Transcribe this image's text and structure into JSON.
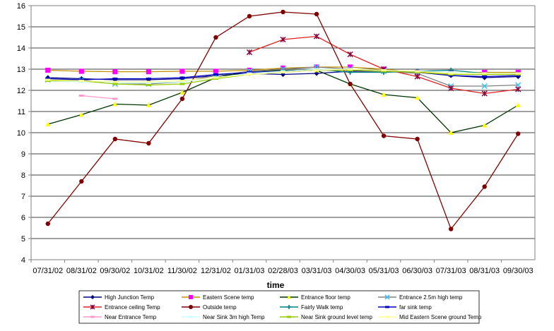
{
  "chart_data": {
    "type": "line",
    "title": "",
    "xlabel": "time",
    "ylabel": "",
    "ylim": [
      4,
      16
    ],
    "yticks": [
      4,
      5,
      6,
      7,
      8,
      9,
      10,
      11,
      12,
      13,
      14,
      15,
      16
    ],
    "grid": true,
    "legend_placement": "bottom",
    "categories": [
      "07/31/02",
      "08/31/02",
      "09/30/02",
      "10/31/02",
      "11/30/02",
      "12/31/02",
      "01/31/03",
      "02/28/03",
      "03/31/03",
      "04/30/03",
      "05/31/03",
      "06/30/03",
      "07/31/03",
      "08/31/03",
      "09/30/03"
    ],
    "series": [
      {
        "name": "High Junction Temp",
        "color": "#000080",
        "marker": "diamond",
        "values": [
          12.6,
          12.55,
          12.5,
          12.5,
          12.55,
          12.7,
          12.8,
          12.75,
          12.8,
          12.9,
          12.9,
          12.9,
          12.7,
          12.6,
          12.65
        ]
      },
      {
        "name": "Eastern Scene temp",
        "color": "#FF00FF",
        "marker": "square",
        "line_color": "#C09000",
        "values": [
          12.95,
          12.9,
          12.88,
          12.88,
          12.9,
          12.9,
          12.95,
          13.05,
          13.1,
          13.1,
          13.0,
          12.85,
          12.8,
          12.85,
          12.85
        ]
      },
      {
        "name": "Entrance floor temp",
        "color": "#FFFF00",
        "marker": "triangle",
        "line_color": "#003300",
        "values": [
          10.4,
          10.85,
          11.35,
          11.3,
          11.9,
          12.6,
          12.9,
          12.95,
          12.95,
          12.3,
          11.8,
          11.65,
          10.0,
          10.35,
          11.3
        ]
      },
      {
        "name": "Entrance 2.5m high temp",
        "color": "#40C0FF",
        "marker": "x",
        "line_color": "#808080",
        "values": [
          12.5,
          12.5,
          12.3,
          12.3,
          12.4,
          12.7,
          12.9,
          13.0,
          13.1,
          13.0,
          12.9,
          12.8,
          12.2,
          12.2,
          12.25
        ]
      },
      {
        "name": "Entrance ceiling Temp",
        "color": "#800040",
        "marker": "star",
        "line_color": "#E02020",
        "values": [
          null,
          null,
          null,
          null,
          null,
          null,
          13.8,
          14.4,
          14.55,
          13.7,
          13.0,
          12.65,
          12.1,
          11.85,
          12.05
        ]
      },
      {
        "name": "Outside temp",
        "color": "#800000",
        "marker": "circle",
        "values": [
          5.7,
          7.7,
          9.7,
          9.5,
          11.6,
          14.5,
          15.5,
          15.7,
          15.6,
          12.3,
          9.85,
          9.7,
          5.45,
          7.45,
          9.95
        ]
      },
      {
        "name": "Fairly Walk temp",
        "color": "#008080",
        "marker": "plus",
        "values": [
          null,
          null,
          null,
          null,
          null,
          null,
          12.85,
          12.9,
          13.0,
          12.85,
          12.85,
          12.9,
          12.95,
          12.8,
          12.8
        ]
      },
      {
        "name": "far sink temp",
        "color": "#0000C0",
        "marker": "dash",
        "values": [
          12.55,
          12.5,
          12.55,
          12.55,
          12.6,
          12.75,
          12.85,
          12.9,
          12.95,
          12.95,
          12.9,
          12.85,
          12.7,
          12.65,
          12.7
        ]
      },
      {
        "name": "Near Entrance Temp",
        "color": "#FF99CC",
        "marker": "dash",
        "values": [
          null,
          11.75,
          11.6,
          null,
          null,
          null,
          null,
          null,
          null,
          null,
          null,
          null,
          null,
          null,
          null
        ]
      },
      {
        "name": "Near Sink 3m high Temp",
        "color": "#CCFFFF",
        "marker": "dash",
        "values": [
          12.45,
          12.4,
          12.35,
          12.35,
          12.4,
          12.6,
          12.8,
          12.9,
          13.0,
          13.0,
          12.95,
          12.9,
          12.85,
          12.8,
          12.8
        ]
      },
      {
        "name": "Near Sink ground level temp",
        "color": "#99CC00",
        "marker": "dash",
        "values": [
          12.45,
          12.45,
          12.3,
          12.25,
          12.3,
          12.55,
          12.75,
          12.85,
          12.95,
          12.95,
          12.9,
          12.85,
          12.75,
          12.75,
          12.75
        ]
      },
      {
        "name": "Mid Eastern Scene ground Temp",
        "color": "#FFFF99",
        "marker": "dash",
        "values": [
          12.5,
          12.45,
          12.4,
          12.4,
          12.45,
          12.6,
          12.75,
          12.85,
          12.95,
          13.0,
          12.95,
          12.9,
          12.8,
          12.8,
          12.8
        ]
      }
    ]
  }
}
